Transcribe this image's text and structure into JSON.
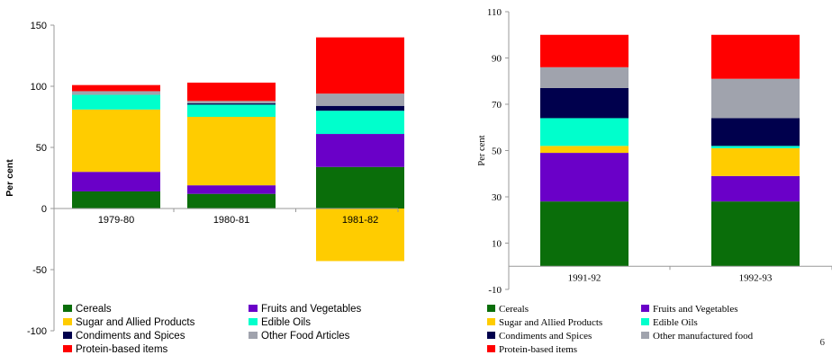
{
  "chart_data": [
    {
      "type": "bar",
      "stacked": true,
      "categories": [
        "1979-80",
        "1980-81",
        "1981-82"
      ],
      "ylabel": "Per cent",
      "ylim": [
        -100,
        150
      ],
      "yticks": [
        -100,
        -50,
        0,
        50,
        100,
        150
      ],
      "grid": false,
      "legend_position": "bottom",
      "series": [
        {
          "name": "Cereals",
          "color": "#0a6e0a",
          "values": [
            14,
            12,
            34
          ]
        },
        {
          "name": "Fruits and Vegetables",
          "color": "#6a00c8",
          "values": [
            16,
            7,
            27
          ]
        },
        {
          "name": "Sugar and Allied Products",
          "color": "#ffcc00",
          "values": [
            51,
            56,
            -43
          ]
        },
        {
          "name": "Edible Oils",
          "color": "#00ffcc",
          "values": [
            12,
            10,
            19
          ]
        },
        {
          "name": "Condiments and Spices",
          "color": "#00004d",
          "values": [
            0,
            1,
            4
          ]
        },
        {
          "name": "Other Food Articles",
          "color": "#a0a3ad",
          "values": [
            3,
            2,
            10
          ]
        },
        {
          "name": "Protein-based items",
          "color": "#ff0000",
          "values": [
            5,
            15,
            46
          ]
        }
      ]
    },
    {
      "type": "bar",
      "stacked": true,
      "categories": [
        "1991-92",
        "1992-93"
      ],
      "ylabel": "Per cent",
      "ylim": [
        -10,
        110
      ],
      "yticks": [
        -10,
        10,
        30,
        50,
        70,
        90,
        110
      ],
      "grid": false,
      "legend_position": "bottom",
      "series": [
        {
          "name": "Cereals",
          "color": "#0a6e0a",
          "values": [
            28,
            28
          ]
        },
        {
          "name": "Fruits and Vegetables",
          "color": "#6a00c8",
          "values": [
            21,
            11
          ]
        },
        {
          "name": "Sugar and Allied Products",
          "color": "#ffcc00",
          "values": [
            3,
            12
          ]
        },
        {
          "name": "Edible Oils",
          "color": "#00ffcc",
          "values": [
            12,
            1
          ]
        },
        {
          "name": "Condiments and Spices",
          "color": "#00004d",
          "values": [
            13,
            12
          ]
        },
        {
          "name": "Other manufactured food",
          "color": "#a0a3ad",
          "values": [
            9,
            17
          ]
        },
        {
          "name": "Protein-based items",
          "color": "#ff0000",
          "values": [
            14,
            19
          ]
        }
      ]
    }
  ],
  "page_number": "6"
}
